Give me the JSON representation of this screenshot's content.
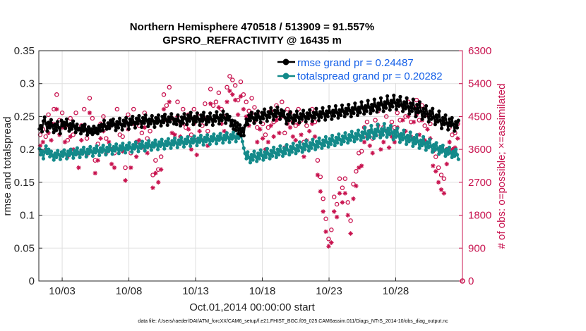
{
  "chart_data": {
    "type": "line",
    "title_line1": "Northern Hemisphere 470518 / 513909 = 91.557%",
    "title_line2": "GPSRO_REFRACTIVITY @ 16435 m",
    "xlabel": "Oct.01,2014 00:00:00 start",
    "ylabel_left": "rmse and totalspread",
    "ylabel_right": "# of obs: o=possible; ×=assimilated",
    "footer": "data file: /Users/raeder/DAI/ATM_forcXX/CAM6_setup/f.e21.FHIST_BGC.f09_025.CAM6assim.011/Diags_NTrS_2014-10/obs_diag_output.nc",
    "xlim_days": [
      1.25,
      33.0
    ],
    "x_ticks": [
      3,
      8,
      13,
      18,
      23,
      28
    ],
    "x_tick_labels": [
      "10/03",
      "10/08",
      "10/13",
      "10/18",
      "10/23",
      "10/28"
    ],
    "ylim_left": [
      0,
      0.35
    ],
    "y_ticks_left": [
      "0",
      "0.05",
      "0.1",
      "0.15",
      "0.2",
      "0.25",
      "0.3",
      "0.35"
    ],
    "ylim_right": [
      0,
      6300
    ],
    "y_ticks_right": [
      "0",
      "900",
      "1800",
      "2700",
      "3600",
      "4500",
      "5400",
      "6300"
    ],
    "colors": {
      "rmse": "#000000",
      "spread": "#138a8a",
      "obs": "#c8134f",
      "legend_text": "#1560e8"
    },
    "series": [
      {
        "name": "rmse",
        "legend": "rmse grand pr = 0.24487",
        "values": [
          0.231,
          0.236,
          0.227,
          0.243,
          0.249,
          0.239,
          0.228,
          0.241,
          0.233,
          0.245,
          0.236,
          0.226,
          0.238,
          0.229,
          0.242,
          0.233,
          0.224,
          0.244,
          0.236,
          0.241,
          0.232,
          0.246,
          0.237,
          0.228,
          0.239,
          0.231,
          0.243,
          0.235,
          0.226,
          0.238,
          0.23,
          0.232,
          0.224,
          0.236,
          0.228,
          0.238,
          0.23,
          0.222,
          0.234,
          0.226,
          0.231,
          0.223,
          0.235,
          0.226,
          0.232,
          0.224,
          0.236,
          0.228,
          0.238,
          0.229,
          0.244,
          0.235,
          0.231,
          0.24,
          0.232,
          0.244,
          0.236,
          0.246,
          0.238,
          0.229,
          0.242,
          0.233,
          0.247,
          0.238,
          0.23,
          0.244,
          0.236,
          0.248,
          0.24,
          0.231,
          0.246,
          0.238,
          0.25,
          0.241,
          0.233,
          0.247,
          0.239,
          0.251,
          0.243,
          0.234,
          0.248,
          0.24,
          0.252,
          0.244,
          0.235,
          0.246,
          0.239,
          0.251,
          0.243,
          0.234,
          0.248,
          0.24,
          0.252,
          0.243,
          0.236,
          0.25,
          0.241,
          0.253,
          0.245,
          0.237,
          0.249,
          0.242,
          0.254,
          0.247,
          0.239,
          0.246,
          0.238,
          0.252,
          0.243,
          0.236,
          0.249,
          0.24,
          0.254,
          0.247,
          0.238,
          0.252,
          0.243,
          0.256,
          0.247,
          0.238,
          0.25,
          0.242,
          0.255,
          0.246,
          0.237,
          0.252,
          0.243,
          0.256,
          0.246,
          0.238,
          0.25,
          0.242,
          0.255,
          0.246,
          0.237,
          0.251,
          0.243,
          0.257,
          0.248,
          0.239,
          0.252,
          0.244,
          0.258,
          0.248,
          0.24,
          0.253,
          0.245,
          0.25,
          0.236,
          0.244,
          0.231,
          0.243,
          0.229,
          0.24,
          0.224,
          0.237,
          0.221,
          0.232,
          0.221,
          0.236,
          0.246,
          0.238,
          0.252,
          0.244,
          0.256,
          0.248,
          0.24,
          0.254,
          0.245,
          0.258,
          0.249,
          0.241,
          0.256,
          0.247,
          0.261,
          0.252,
          0.243,
          0.257,
          0.249,
          0.263,
          0.254,
          0.245,
          0.259,
          0.25,
          0.264,
          0.255,
          0.246,
          0.26,
          0.251,
          0.258,
          0.248,
          0.239,
          0.253,
          0.244,
          0.257,
          0.248,
          0.24,
          0.252,
          0.244,
          0.258,
          0.249,
          0.241,
          0.254,
          0.246,
          0.259,
          0.25,
          0.242,
          0.255,
          0.247,
          0.26,
          0.251,
          0.243,
          0.256,
          0.248,
          0.262,
          0.253,
          0.244,
          0.257,
          0.249,
          0.263,
          0.254,
          0.245,
          0.258,
          0.25,
          0.265,
          0.256,
          0.246,
          0.259,
          0.251,
          0.266,
          0.256,
          0.248,
          0.26,
          0.252,
          0.267,
          0.258,
          0.25,
          0.262,
          0.254,
          0.268,
          0.259,
          0.25,
          0.263,
          0.255,
          0.27,
          0.261,
          0.252,
          0.264,
          0.256,
          0.272,
          0.263,
          0.254,
          0.266,
          0.258,
          0.274,
          0.264,
          0.255,
          0.268,
          0.259,
          0.276,
          0.266,
          0.257,
          0.27,
          0.261,
          0.278,
          0.268,
          0.258,
          0.272,
          0.263,
          0.281,
          0.27,
          0.26,
          0.274,
          0.265,
          0.282,
          0.271,
          0.261,
          0.275,
          0.266,
          0.28,
          0.268,
          0.258,
          0.272,
          0.262,
          0.278,
          0.265,
          0.254,
          0.27,
          0.258,
          0.276,
          0.262,
          0.25,
          0.268,
          0.256,
          0.272,
          0.258,
          0.246,
          0.262,
          0.25,
          0.266,
          0.254,
          0.242,
          0.258,
          0.246,
          0.262,
          0.249,
          0.238,
          0.252,
          0.242,
          0.258,
          0.244,
          0.232,
          0.248,
          0.238,
          0.252,
          0.24,
          0.23,
          0.246,
          0.236,
          0.248,
          0.238,
          0.228,
          0.242,
          0.233,
          0.244
        ]
      },
      {
        "name": "totalspread",
        "legend": "totalspread grand pr = 0.20282",
        "values": [
          0.201,
          0.192,
          0.198,
          0.186,
          0.196,
          0.205,
          0.194,
          0.2,
          0.189,
          0.197,
          0.191,
          0.184,
          0.194,
          0.188,
          0.198,
          0.192,
          0.185,
          0.196,
          0.19,
          0.199,
          0.193,
          0.186,
          0.197,
          0.191,
          0.2,
          0.194,
          0.187,
          0.198,
          0.192,
          0.202,
          0.195,
          0.188,
          0.199,
          0.193,
          0.203,
          0.196,
          0.189,
          0.2,
          0.194,
          0.204,
          0.197,
          0.19,
          0.201,
          0.195,
          0.205,
          0.198,
          0.191,
          0.202,
          0.196,
          0.206,
          0.199,
          0.192,
          0.203,
          0.197,
          0.207,
          0.2,
          0.193,
          0.204,
          0.198,
          0.208,
          0.201,
          0.194,
          0.205,
          0.199,
          0.209,
          0.202,
          0.195,
          0.206,
          0.2,
          0.21,
          0.203,
          0.196,
          0.207,
          0.201,
          0.211,
          0.204,
          0.197,
          0.208,
          0.202,
          0.212,
          0.205,
          0.198,
          0.209,
          0.203,
          0.213,
          0.206,
          0.199,
          0.21,
          0.204,
          0.214,
          0.207,
          0.2,
          0.211,
          0.205,
          0.215,
          0.208,
          0.201,
          0.212,
          0.206,
          0.216,
          0.209,
          0.202,
          0.213,
          0.207,
          0.217,
          0.21,
          0.203,
          0.214,
          0.208,
          0.218,
          0.211,
          0.204,
          0.215,
          0.209,
          0.219,
          0.212,
          0.205,
          0.216,
          0.21,
          0.22,
          0.213,
          0.206,
          0.217,
          0.211,
          0.221,
          0.214,
          0.207,
          0.218,
          0.212,
          0.222,
          0.215,
          0.208,
          0.219,
          0.213,
          0.223,
          0.216,
          0.209,
          0.22,
          0.214,
          0.224,
          0.217,
          0.21,
          0.221,
          0.215,
          0.225,
          0.218,
          0.211,
          0.222,
          0.216,
          0.226,
          0.219,
          0.212,
          0.223,
          0.217,
          0.227,
          0.22,
          0.212,
          0.202,
          0.194,
          0.186,
          0.196,
          0.188,
          0.18,
          0.192,
          0.184,
          0.197,
          0.189,
          0.182,
          0.194,
          0.186,
          0.199,
          0.191,
          0.184,
          0.196,
          0.188,
          0.201,
          0.193,
          0.186,
          0.198,
          0.19,
          0.203,
          0.195,
          0.188,
          0.2,
          0.192,
          0.205,
          0.197,
          0.19,
          0.202,
          0.194,
          0.207,
          0.199,
          0.192,
          0.204,
          0.196,
          0.209,
          0.201,
          0.194,
          0.206,
          0.198,
          0.211,
          0.203,
          0.196,
          0.208,
          0.2,
          0.213,
          0.205,
          0.198,
          0.21,
          0.202,
          0.215,
          0.207,
          0.2,
          0.212,
          0.204,
          0.217,
          0.209,
          0.202,
          0.214,
          0.206,
          0.219,
          0.211,
          0.204,
          0.216,
          0.208,
          0.221,
          0.213,
          0.206,
          0.218,
          0.21,
          0.223,
          0.215,
          0.208,
          0.22,
          0.212,
          0.225,
          0.217,
          0.21,
          0.222,
          0.214,
          0.227,
          0.219,
          0.212,
          0.224,
          0.216,
          0.229,
          0.221,
          0.214,
          0.226,
          0.218,
          0.233,
          0.224,
          0.216,
          0.228,
          0.219,
          0.236,
          0.226,
          0.217,
          0.23,
          0.221,
          0.238,
          0.227,
          0.218,
          0.231,
          0.222,
          0.239,
          0.228,
          0.219,
          0.232,
          0.223,
          0.236,
          0.225,
          0.215,
          0.228,
          0.219,
          0.232,
          0.221,
          0.211,
          0.224,
          0.215,
          0.229,
          0.218,
          0.208,
          0.221,
          0.212,
          0.226,
          0.215,
          0.205,
          0.218,
          0.209,
          0.222,
          0.212,
          0.202,
          0.214,
          0.206,
          0.219,
          0.209,
          0.199,
          0.211,
          0.203,
          0.215,
          0.205,
          0.196,
          0.207,
          0.199,
          0.21,
          0.201,
          0.193,
          0.204,
          0.196,
          0.206,
          0.198,
          0.19,
          0.2,
          0.193,
          0.203,
          0.195,
          0.188,
          0.197,
          0.19,
          0.2,
          0.192,
          0.185
        ]
      },
      {
        "name": "obs possible",
        "values": [
          4000,
          4150,
          3950,
          4550,
          4300,
          4700,
          5100,
          4400,
          4600,
          4200,
          3850,
          4450,
          4000,
          4600,
          3500,
          4250,
          4700,
          3900,
          5000,
          4450,
          3300,
          3750,
          4300,
          4500,
          3900,
          4200,
          3600,
          3500,
          4700,
          4000,
          3950,
          3100,
          4550,
          3500,
          4700,
          3800,
          4250,
          4050,
          4600,
          3900,
          4100,
          2900,
          3300,
          3050,
          3400,
          5100,
          4800,
          5300,
          4450,
          4400,
          4900,
          4350,
          4700,
          4200,
          4550,
          4000,
          4700,
          3850,
          4500,
          4250,
          4850,
          4100,
          5250,
          4800,
          4900,
          5150,
          4700,
          4500,
          5300,
          5600,
          5500,
          5350,
          4950,
          5450,
          5100,
          4900,
          4650,
          5000,
          4750,
          4200,
          4550,
          4300,
          4000,
          4200,
          4650,
          4350,
          4800,
          4450,
          4900,
          4050,
          4700,
          4600,
          4350,
          4250,
          4700,
          4400,
          3800,
          4250,
          4500,
          4700,
          4350,
          3300,
          2850,
          2250,
          1700,
          1150,
          1400,
          2300,
          2100,
          2800,
          2550,
          2800,
          2150,
          1650,
          2650,
          3000,
          3500,
          3550,
          4200,
          4350,
          4100,
          3900,
          4400,
          4650,
          4000,
          4200,
          4500,
          4050,
          4350,
          4200,
          4600,
          4400,
          4800,
          4500,
          4900,
          4350,
          4750,
          4950,
          4400,
          4800,
          4250,
          4550,
          4300,
          3550,
          3400,
          3100,
          2900,
          2800,
          3600,
          4200,
          4000,
          4050,
          4300
        ]
      },
      {
        "name": "obs assimilated",
        "values": [
          3700,
          3800,
          3600,
          4050,
          3850,
          4300,
          4700,
          4000,
          4200,
          3800,
          3400,
          3950,
          3600,
          4200,
          3100,
          3850,
          4250,
          3450,
          4600,
          4050,
          2950,
          3300,
          3900,
          4100,
          3500,
          3800,
          3200,
          3100,
          4300,
          3600,
          3550,
          2750,
          4150,
          3100,
          4300,
          3400,
          3850,
          3650,
          4200,
          3500,
          3700,
          2550,
          2950,
          2700,
          3050,
          4700,
          4400,
          4900,
          4050,
          4000,
          4500,
          3950,
          4300,
          3800,
          4150,
          3600,
          4300,
          3450,
          4100,
          3850,
          4450,
          3700,
          4850,
          4400,
          4500,
          4750,
          4300,
          4100,
          4900,
          5200,
          5100,
          4950,
          4550,
          5050,
          4700,
          4500,
          4250,
          4600,
          4350,
          3800,
          4150,
          3900,
          3600,
          3800,
          4250,
          3950,
          4400,
          4050,
          4500,
          3650,
          4300,
          4200,
          3950,
          3850,
          4300,
          4000,
          3400,
          3850,
          4100,
          4300,
          3950,
          2900,
          2450,
          1900,
          1350,
          950,
          1050,
          1900,
          1750,
          2400,
          2150,
          2400,
          1800,
          1300,
          2250,
          2600,
          3100,
          3150,
          3800,
          3950,
          3700,
          3500,
          4000,
          4250,
          3600,
          3800,
          4100,
          3650,
          3950,
          3800,
          4200,
          4000,
          4400,
          4100,
          4500,
          3950,
          4350,
          4550,
          4000,
          4400,
          3850,
          4150,
          3900,
          3150,
          3000,
          2700,
          2500,
          2400,
          3200,
          3800,
          3600,
          3650,
          3900
        ]
      }
    ],
    "legend_position": "top-right"
  }
}
